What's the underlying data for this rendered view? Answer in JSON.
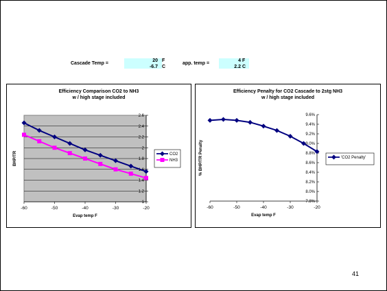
{
  "header": {
    "cascade_label": "Cascade Temp =",
    "cascade_f": "20",
    "cascade_f_unit": "F",
    "cascade_c": "-6.7",
    "cascade_c_unit": "C",
    "app_label": "app. temp =",
    "app_f": "4",
    "app_f_unit": "F",
    "app_c": "2.2",
    "app_c_unit": "C",
    "cell_color": "#ccffff"
  },
  "page_number": "41",
  "chart_data": [
    {
      "type": "line",
      "title": "Efficiency Comparison CO2 to NH3",
      "subtitle": "w / high stage included",
      "xlabel": "Evap temp F",
      "ylabel": "BHP/TR",
      "x": [
        -60,
        -55,
        -50,
        -45,
        -40,
        -35,
        -30,
        -25,
        -20
      ],
      "xlim": [
        -60,
        -20
      ],
      "ylim": [
        1,
        2.6
      ],
      "xticks": [
        "-60",
        "-50",
        "-40",
        "-30",
        "-20"
      ],
      "yticks": [
        "1",
        "1.2",
        "1.4",
        "1.6",
        "1.8",
        "2",
        "2.2",
        "2.4",
        "2.6"
      ],
      "grid": true,
      "plot_bg": "#c0c0c0",
      "legend": "right",
      "series": [
        {
          "name": "CO2",
          "color": "#000080",
          "marker": "diamond",
          "values": [
            2.46,
            2.32,
            2.2,
            2.08,
            1.96,
            1.86,
            1.76,
            1.66,
            1.56
          ]
        },
        {
          "name": "NH3",
          "color": "#ff00ff",
          "marker": "square",
          "values": [
            2.24,
            2.12,
            2.0,
            1.9,
            1.8,
            1.7,
            1.6,
            1.52,
            1.44
          ]
        }
      ]
    },
    {
      "type": "line",
      "title": "Efficiency Penalty for CO2 Cascade to 2stg NH3",
      "subtitle": "w / high stage included",
      "xlabel": "Evap temp F",
      "ylabel": "% BHP/TR Penalty",
      "x": [
        -60,
        -55,
        -50,
        -45,
        -40,
        -35,
        -30,
        -25,
        -20
      ],
      "xlim": [
        -60,
        -20
      ],
      "ylim": [
        7.8,
        9.6
      ],
      "xticks": [
        "-60",
        "-50",
        "-40",
        "-30",
        "-20"
      ],
      "yticks": [
        "7.8%",
        "8.0%",
        "8.2%",
        "8.4%",
        "8.6%",
        "8.8%",
        "9.0%",
        "9.2%",
        "9.4%",
        "9.6%"
      ],
      "grid": false,
      "plot_bg": "#ffffff",
      "legend": "right",
      "series": [
        {
          "name": "'CO2 Penalty'",
          "color": "#000080",
          "marker": "diamond",
          "values": [
            9.48,
            9.5,
            9.48,
            9.44,
            9.36,
            9.27,
            9.15,
            9.0,
            8.83
          ]
        }
      ]
    }
  ]
}
